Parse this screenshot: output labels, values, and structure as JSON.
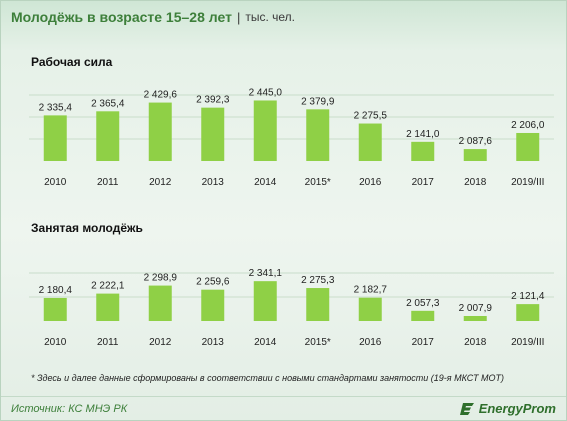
{
  "header": {
    "title": "Молодёжь в возрасте 15–28 лет",
    "separator": "|",
    "unit": "тыс. чел."
  },
  "chart_data": [
    {
      "type": "bar",
      "title": "Рабочая  сила",
      "categories": [
        "2010",
        "2011",
        "2012",
        "2013",
        "2014",
        "2015*",
        "2016",
        "2017",
        "2018",
        "2019/III"
      ],
      "values": [
        2335.4,
        2365.4,
        2429.6,
        2392.3,
        2445.0,
        2379.9,
        2275.5,
        2141.0,
        2087.6,
        2206.0
      ],
      "value_labels": [
        "2 335,4",
        "2 365,4",
        "2 429,6",
        "2 392,3",
        "2 445,0",
        "2 379,9",
        "2 275,5",
        "2 141,0",
        "2 087,6",
        "2 206,0"
      ],
      "ylim": [
        2000,
        2500
      ],
      "grid": true,
      "color": "#8fd046"
    },
    {
      "type": "bar",
      "title": "Занятая  молодёжь",
      "categories": [
        "2010",
        "2011",
        "2012",
        "2013",
        "2014",
        "2015*",
        "2016",
        "2017",
        "2018",
        "2019/III"
      ],
      "values": [
        2180.4,
        2222.1,
        2298.9,
        2259.6,
        2341.1,
        2275.3,
        2182.7,
        2057.3,
        2007.9,
        2121.4
      ],
      "value_labels": [
        "2 180,4",
        "2 222,1",
        "2 298,9",
        "2 259,6",
        "2 341,1",
        "2 275,3",
        "2 182,7",
        "2 057,3",
        "2 007,9",
        "2 121,4"
      ],
      "ylim": [
        1960,
        2400
      ],
      "grid": true,
      "color": "#8fd046"
    }
  ],
  "footnote": "* Здесь и далее данные сформированы в соответствии с новыми стандартами занятости (19-я МКСТ МОТ)",
  "footer": {
    "source": "Источник: КС МНЭ РК",
    "logo_text": "EnergyProm",
    "logo_icon": "energyprom-logo-icon"
  }
}
